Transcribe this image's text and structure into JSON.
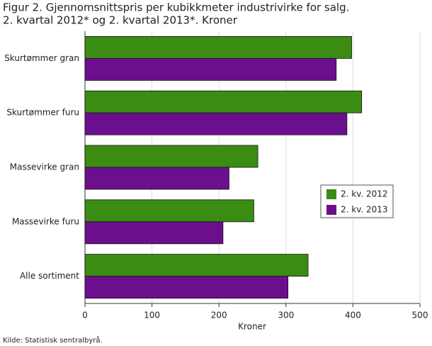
{
  "chart_data": {
    "type": "hbar",
    "title": [
      "Figur 2. Gjennomsnittspris per kubikkmeter industrivirke for salg.",
      "2. kvartal 2012* og 2. kvartal 2013*. Kroner"
    ],
    "categories": [
      "Skurtømmer gran",
      "Skurtømmer furu",
      "Massevirke gran",
      "Massevirke furu",
      "Alle sortiment"
    ],
    "series": [
      {
        "name": "2. kv. 2012",
        "color": "#3b8c12",
        "values": [
          398,
          413,
          258,
          252,
          333
        ]
      },
      {
        "name": "2. kv. 2013",
        "color": "#6b0f8c",
        "values": [
          375,
          391,
          215,
          206,
          303
        ]
      }
    ],
    "xlabel": "Kroner",
    "xlim": [
      0,
      500
    ],
    "xticks": [
      0,
      100,
      200,
      300,
      400,
      500
    ],
    "grid": true,
    "source": "Kilde: Statistisk sentralbyrå."
  }
}
